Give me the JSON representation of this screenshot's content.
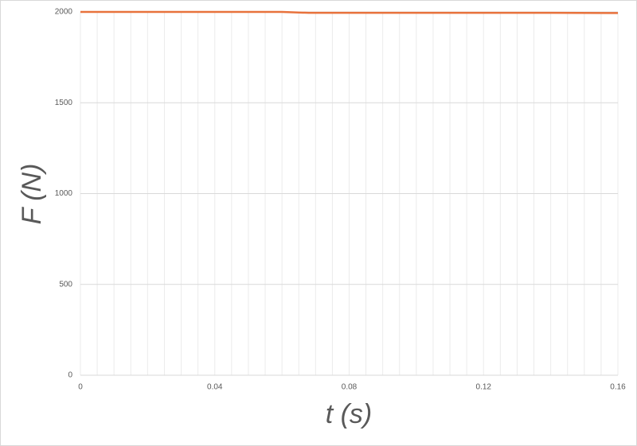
{
  "chart_data": {
    "type": "line",
    "x_label": "t (s)",
    "y_label": "F (N)",
    "series": [
      {
        "name": "F",
        "color": "#e8723c",
        "x": [
          0,
          0.02,
          0.04,
          0.06,
          0.068,
          0.08,
          0.1,
          0.12,
          0.14,
          0.16
        ],
        "values": [
          2000,
          2000,
          2000,
          2000,
          1995,
          1995,
          1995,
          1995,
          1995,
          1994
        ]
      }
    ],
    "xlim": [
      0,
      0.16
    ],
    "ylim": [
      0,
      2000
    ],
    "xticks": [
      0,
      0.04,
      0.08,
      0.12,
      0.16
    ],
    "yticks": [
      0,
      500,
      1000,
      1500,
      2000
    ],
    "xgrid": [
      0,
      0.005,
      0.01,
      0.015,
      0.02,
      0.025,
      0.03,
      0.035,
      0.04,
      0.045,
      0.05,
      0.055,
      0.06,
      0.065,
      0.07,
      0.075,
      0.08,
      0.085,
      0.09,
      0.095,
      0.1,
      0.105,
      0.11,
      0.115,
      0.12,
      0.125,
      0.13,
      0.135,
      0.14,
      0.145,
      0.15,
      0.155,
      0.16
    ],
    "grid": true
  }
}
